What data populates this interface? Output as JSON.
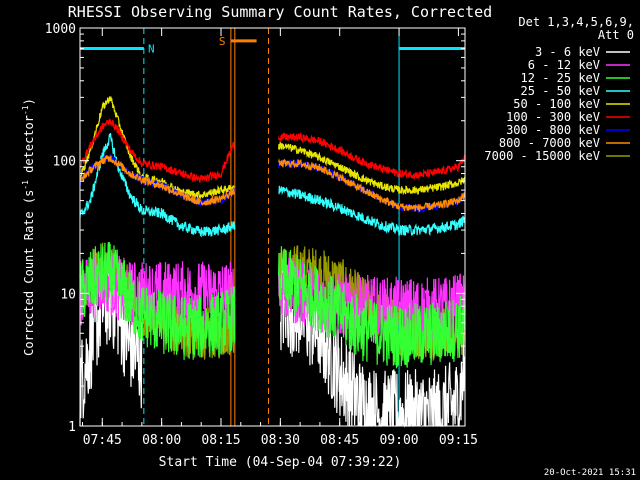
{
  "chart_data": {
    "type": "line",
    "title": "RHESSI Observing Summary Count Rates, Corrected",
    "xlabel": "Start Time (04-Sep-04 07:39:22)",
    "ylabel_main": "Corrected Count Rate (s",
    "ylabel_sup1": "-1",
    "ylabel_mid": " detector",
    "ylabel_sup2": "-1",
    "ylabel_end": ")",
    "y_scale": "log",
    "ylim": [
      1,
      1000
    ],
    "xlim": [
      "07:39:22",
      "09:16:40"
    ],
    "x_ticks": [
      "07:45",
      "08:00",
      "08:15",
      "08:30",
      "08:45",
      "09:00",
      "09:15"
    ],
    "y_ticks": [
      "1",
      "10",
      "100",
      "1000"
    ],
    "legend_header": [
      "Det 1,3,4,5,6,9,",
      "Att 0"
    ],
    "legend_position": "top-right",
    "timestamp": "20-Oct-2021 15:31",
    "gap": [
      "08:18:30",
      "08:29:30"
    ],
    "annotations": [
      {
        "label": "N",
        "color": "#00e6ff",
        "start": "07:39:22",
        "end": "07:55:30",
        "level": 700
      },
      {
        "label": "S",
        "color": "#ff8000",
        "start": "08:17:30",
        "end": "08:24:00",
        "level": 800
      },
      {
        "label": "",
        "color": "#00e6ff",
        "start": "09:00:00",
        "end": "09:16:40",
        "level": 700
      }
    ],
    "vlines": [
      {
        "time": "07:39:22",
        "color": "#00e6ff",
        "style": "solid"
      },
      {
        "time": "07:55:30",
        "color": "#00e6ff",
        "style": "dashed"
      },
      {
        "time": "08:17:30",
        "color": "#ff8000",
        "style": "solid"
      },
      {
        "time": "08:18:30",
        "color": "#ff8000",
        "style": "solid"
      },
      {
        "time": "08:27:00",
        "color": "#ff8000",
        "style": "dashed"
      },
      {
        "time": "09:00:00",
        "color": "#00e6ff",
        "style": "solid"
      },
      {
        "time": "09:16:40",
        "color": "#00e6ff",
        "style": "dashed"
      }
    ],
    "x": [
      "07:39:22",
      "07:42",
      "07:45",
      "07:47",
      "07:49",
      "07:52",
      "07:55",
      "08:00",
      "08:05",
      "08:10",
      "08:15",
      "08:18",
      "08:30",
      "08:35",
      "08:40",
      "08:45",
      "08:50",
      "08:55",
      "09:00",
      "09:05",
      "09:10",
      "09:15",
      "09:16:40"
    ],
    "series": [
      {
        "name": "3 - 6 keV",
        "color": "#ffffff",
        "values": [
          2,
          4,
          8,
          9,
          7,
          4,
          3,
          null,
          null,
          null,
          null,
          null,
          8,
          7,
          5,
          2.5,
          1.5,
          1.2,
          1.2,
          1.2,
          1.2,
          1.5,
          3
        ]
      },
      {
        "name": "6 - 12 keV",
        "color": "#ff33ff",
        "values": [
          10,
          11,
          13,
          12,
          11,
          10,
          10,
          10,
          10,
          10,
          10,
          10,
          11,
          10,
          9,
          8,
          8,
          7.5,
          7.5,
          7.5,
          7.5,
          8,
          8
        ]
      },
      {
        "name": "12 - 25 keV",
        "color": "#33ff33",
        "values": [
          10,
          12,
          14,
          14,
          12,
          9,
          7,
          6,
          5.5,
          5.5,
          6,
          6.5,
          13,
          11,
          9,
          7,
          5.5,
          5,
          4.8,
          4.8,
          5,
          5.5,
          6
        ]
      },
      {
        "name": "25 - 50 keV",
        "color": "#33ffff",
        "values": [
          38,
          50,
          110,
          150,
          90,
          55,
          42,
          40,
          32,
          29,
          30,
          32,
          60,
          55,
          50,
          44,
          38,
          33,
          30,
          30,
          31,
          33,
          36
        ]
      },
      {
        "name": "50 - 100 keV",
        "color": "#e6e600",
        "values": [
          75,
          120,
          250,
          300,
          200,
          110,
          75,
          70,
          58,
          55,
          60,
          62,
          130,
          120,
          105,
          90,
          75,
          65,
          60,
          60,
          63,
          68,
          72
        ]
      },
      {
        "name": "100 - 300 keV",
        "color": "#ff0000",
        "values": [
          90,
          130,
          180,
          200,
          170,
          120,
          95,
          90,
          80,
          72,
          80,
          130,
          150,
          150,
          140,
          120,
          100,
          88,
          80,
          78,
          82,
          90,
          105
        ]
      },
      {
        "name": "300 - 800 keV",
        "color": "#0000ff",
        "values": [
          70,
          85,
          100,
          105,
          95,
          80,
          72,
          65,
          55,
          48,
          50,
          58,
          95,
          95,
          88,
          75,
          62,
          52,
          45,
          44,
          46,
          50,
          56
        ]
      },
      {
        "name": "800 - 7000 keV",
        "color": "#ff8c00",
        "values": [
          70,
          85,
          100,
          105,
          95,
          80,
          72,
          65,
          55,
          48,
          52,
          58,
          95,
          95,
          88,
          75,
          62,
          52,
          45,
          44,
          46,
          50,
          56
        ]
      },
      {
        "name": "7000 - 15000 keV",
        "color": "#999900",
        "values": [
          8,
          13,
          16,
          15,
          12,
          10,
          7,
          6,
          5,
          5,
          5,
          5.5,
          14,
          15,
          14,
          12,
          9,
          7,
          5.5,
          5,
          5,
          5.2,
          5.5
        ]
      }
    ]
  }
}
